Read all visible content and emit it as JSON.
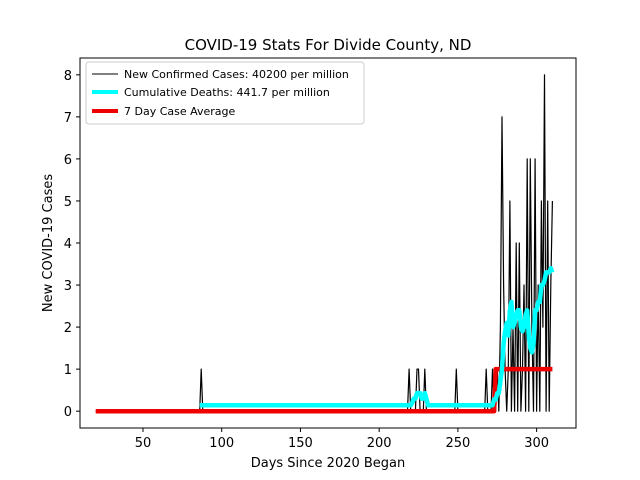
{
  "chart_data": {
    "type": "line",
    "title": "COVID-19 Stats For Divide County, ND",
    "xlabel": "Days Since 2020 Began",
    "ylabel": "New COVID-19 Cases",
    "xlim": [
      10,
      325
    ],
    "ylim": [
      -0.4,
      8.4
    ],
    "xticks": [
      50,
      100,
      150,
      200,
      250,
      300
    ],
    "yticks": [
      0,
      1,
      2,
      3,
      4,
      5,
      6,
      7,
      8
    ],
    "grid": false,
    "legend_position": "top-left",
    "series": [
      {
        "name": "New Confirmed Cases: 40200 per million",
        "color": "#000000",
        "style": "thin-line",
        "x": [
          20,
          86,
          87,
          88,
          218,
          219,
          220,
          223,
          224,
          225,
          226,
          228,
          229,
          230,
          248,
          249,
          250,
          267,
          268,
          269,
          271,
          272,
          273,
          274,
          275,
          276,
          277,
          278,
          279,
          280,
          281,
          282,
          283,
          284,
          285,
          286,
          287,
          288,
          289,
          290,
          291,
          292,
          293,
          294,
          295,
          296,
          297,
          298,
          299,
          300,
          301,
          302,
          303,
          304,
          305,
          306,
          307,
          308,
          309,
          310
        ],
        "values": [
          0,
          0,
          1,
          0,
          0,
          1,
          0,
          0,
          1,
          1,
          0,
          0,
          1,
          0,
          0,
          1,
          0,
          0,
          1,
          0,
          0,
          1,
          0,
          0,
          1,
          0,
          2,
          7,
          3,
          1,
          0,
          1,
          5,
          0,
          2,
          0,
          4,
          0,
          4,
          0,
          1,
          3,
          0,
          6,
          0,
          6,
          2,
          0,
          6,
          0,
          3,
          0,
          5,
          2,
          8,
          0,
          5,
          0,
          3,
          5
        ]
      },
      {
        "name": "Cumulative Deaths: 441.7 per million",
        "color": "#00ffff",
        "style": "thick-line",
        "x": [
          86,
          87,
          88,
          89,
          90,
          91,
          92,
          93,
          218,
          219,
          220,
          221,
          222,
          223,
          224,
          225,
          226,
          227,
          228,
          229,
          230,
          231,
          232,
          233,
          234,
          248,
          249,
          250,
          251,
          252,
          253,
          254,
          267,
          268,
          269,
          270,
          271,
          272,
          273,
          274,
          275,
          276,
          277,
          278,
          279,
          280,
          281,
          282,
          283,
          284,
          285,
          286,
          287,
          288,
          289,
          290,
          291,
          292,
          293,
          294,
          295,
          296,
          297,
          298,
          299,
          300,
          301,
          302,
          303,
          304,
          305,
          306,
          307,
          308,
          309,
          310
        ],
        "values": [
          0.14,
          0.14,
          0.14,
          0.14,
          0.14,
          0.14,
          0.14,
          0.14,
          0.14,
          0.14,
          0.14,
          0.2,
          0.3,
          0.3,
          0.43,
          0.43,
          0.43,
          0.3,
          0.3,
          0.43,
          0.3,
          0.14,
          0.14,
          0.14,
          0.14,
          0.14,
          0.14,
          0.14,
          0.14,
          0.14,
          0.14,
          0.14,
          0.14,
          0.14,
          0.14,
          0.14,
          0.14,
          0.14,
          0.28,
          0.28,
          0.43,
          0.43,
          0.71,
          1.0,
          1.6,
          1.9,
          2.1,
          1.8,
          2.4,
          2.6,
          2.0,
          2.1,
          2.3,
          2.4,
          2.4,
          2.0,
          1.9,
          2.0,
          2.3,
          2.4,
          1.8,
          1.5,
          1.4,
          1.6,
          2.4,
          2.4,
          2.6,
          2.6,
          3.0,
          3.0,
          3.1,
          3.3,
          3.3,
          3.3,
          3.4,
          3.3
        ]
      },
      {
        "name": "7 Day Case Average",
        "color": "#ee0000",
        "style": "thick-line",
        "x": [
          20,
          273,
          274,
          310
        ],
        "values": [
          0,
          0,
          1,
          1
        ]
      }
    ]
  }
}
